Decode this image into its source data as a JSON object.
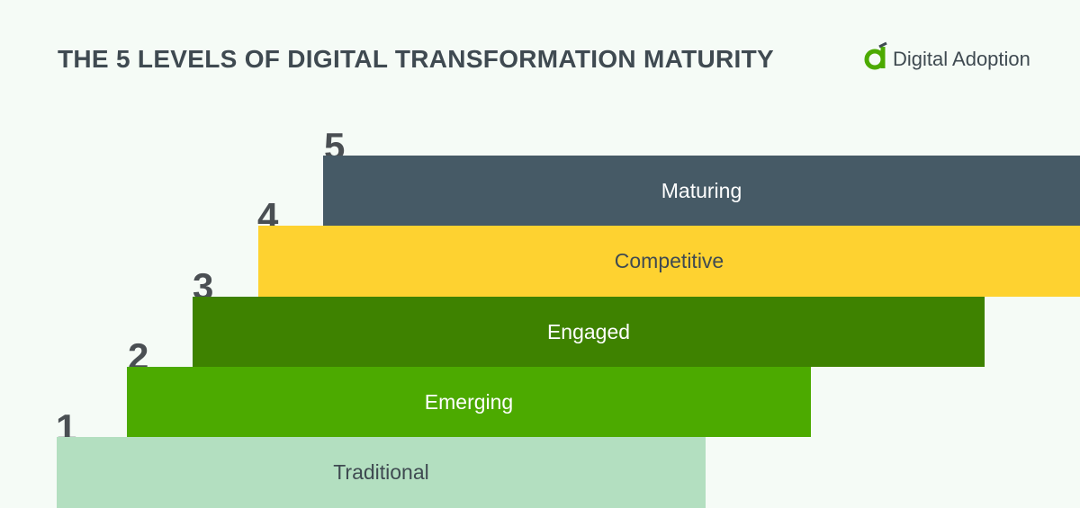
{
  "title": "THE 5 LEVELS OF DIGITAL TRANSFORMATION MATURITY",
  "brand": {
    "name": "Digital Adoption",
    "color": "#4caa00"
  },
  "levels": [
    {
      "number": "1",
      "label": "Traditional",
      "color": "#b3dfc0",
      "text_color": "#3f4a51"
    },
    {
      "number": "2",
      "label": "Emerging",
      "color": "#4caa00",
      "text_color": "#ffffff"
    },
    {
      "number": "3",
      "label": "Engaged",
      "color": "#3e8200",
      "text_color": "#ffffff"
    },
    {
      "number": "4",
      "label": "Competitive",
      "color": "#fed230",
      "text_color": "#3f4a51"
    },
    {
      "number": "5",
      "label": "Maturing",
      "color": "#465a66",
      "text_color": "#ffffff"
    }
  ]
}
